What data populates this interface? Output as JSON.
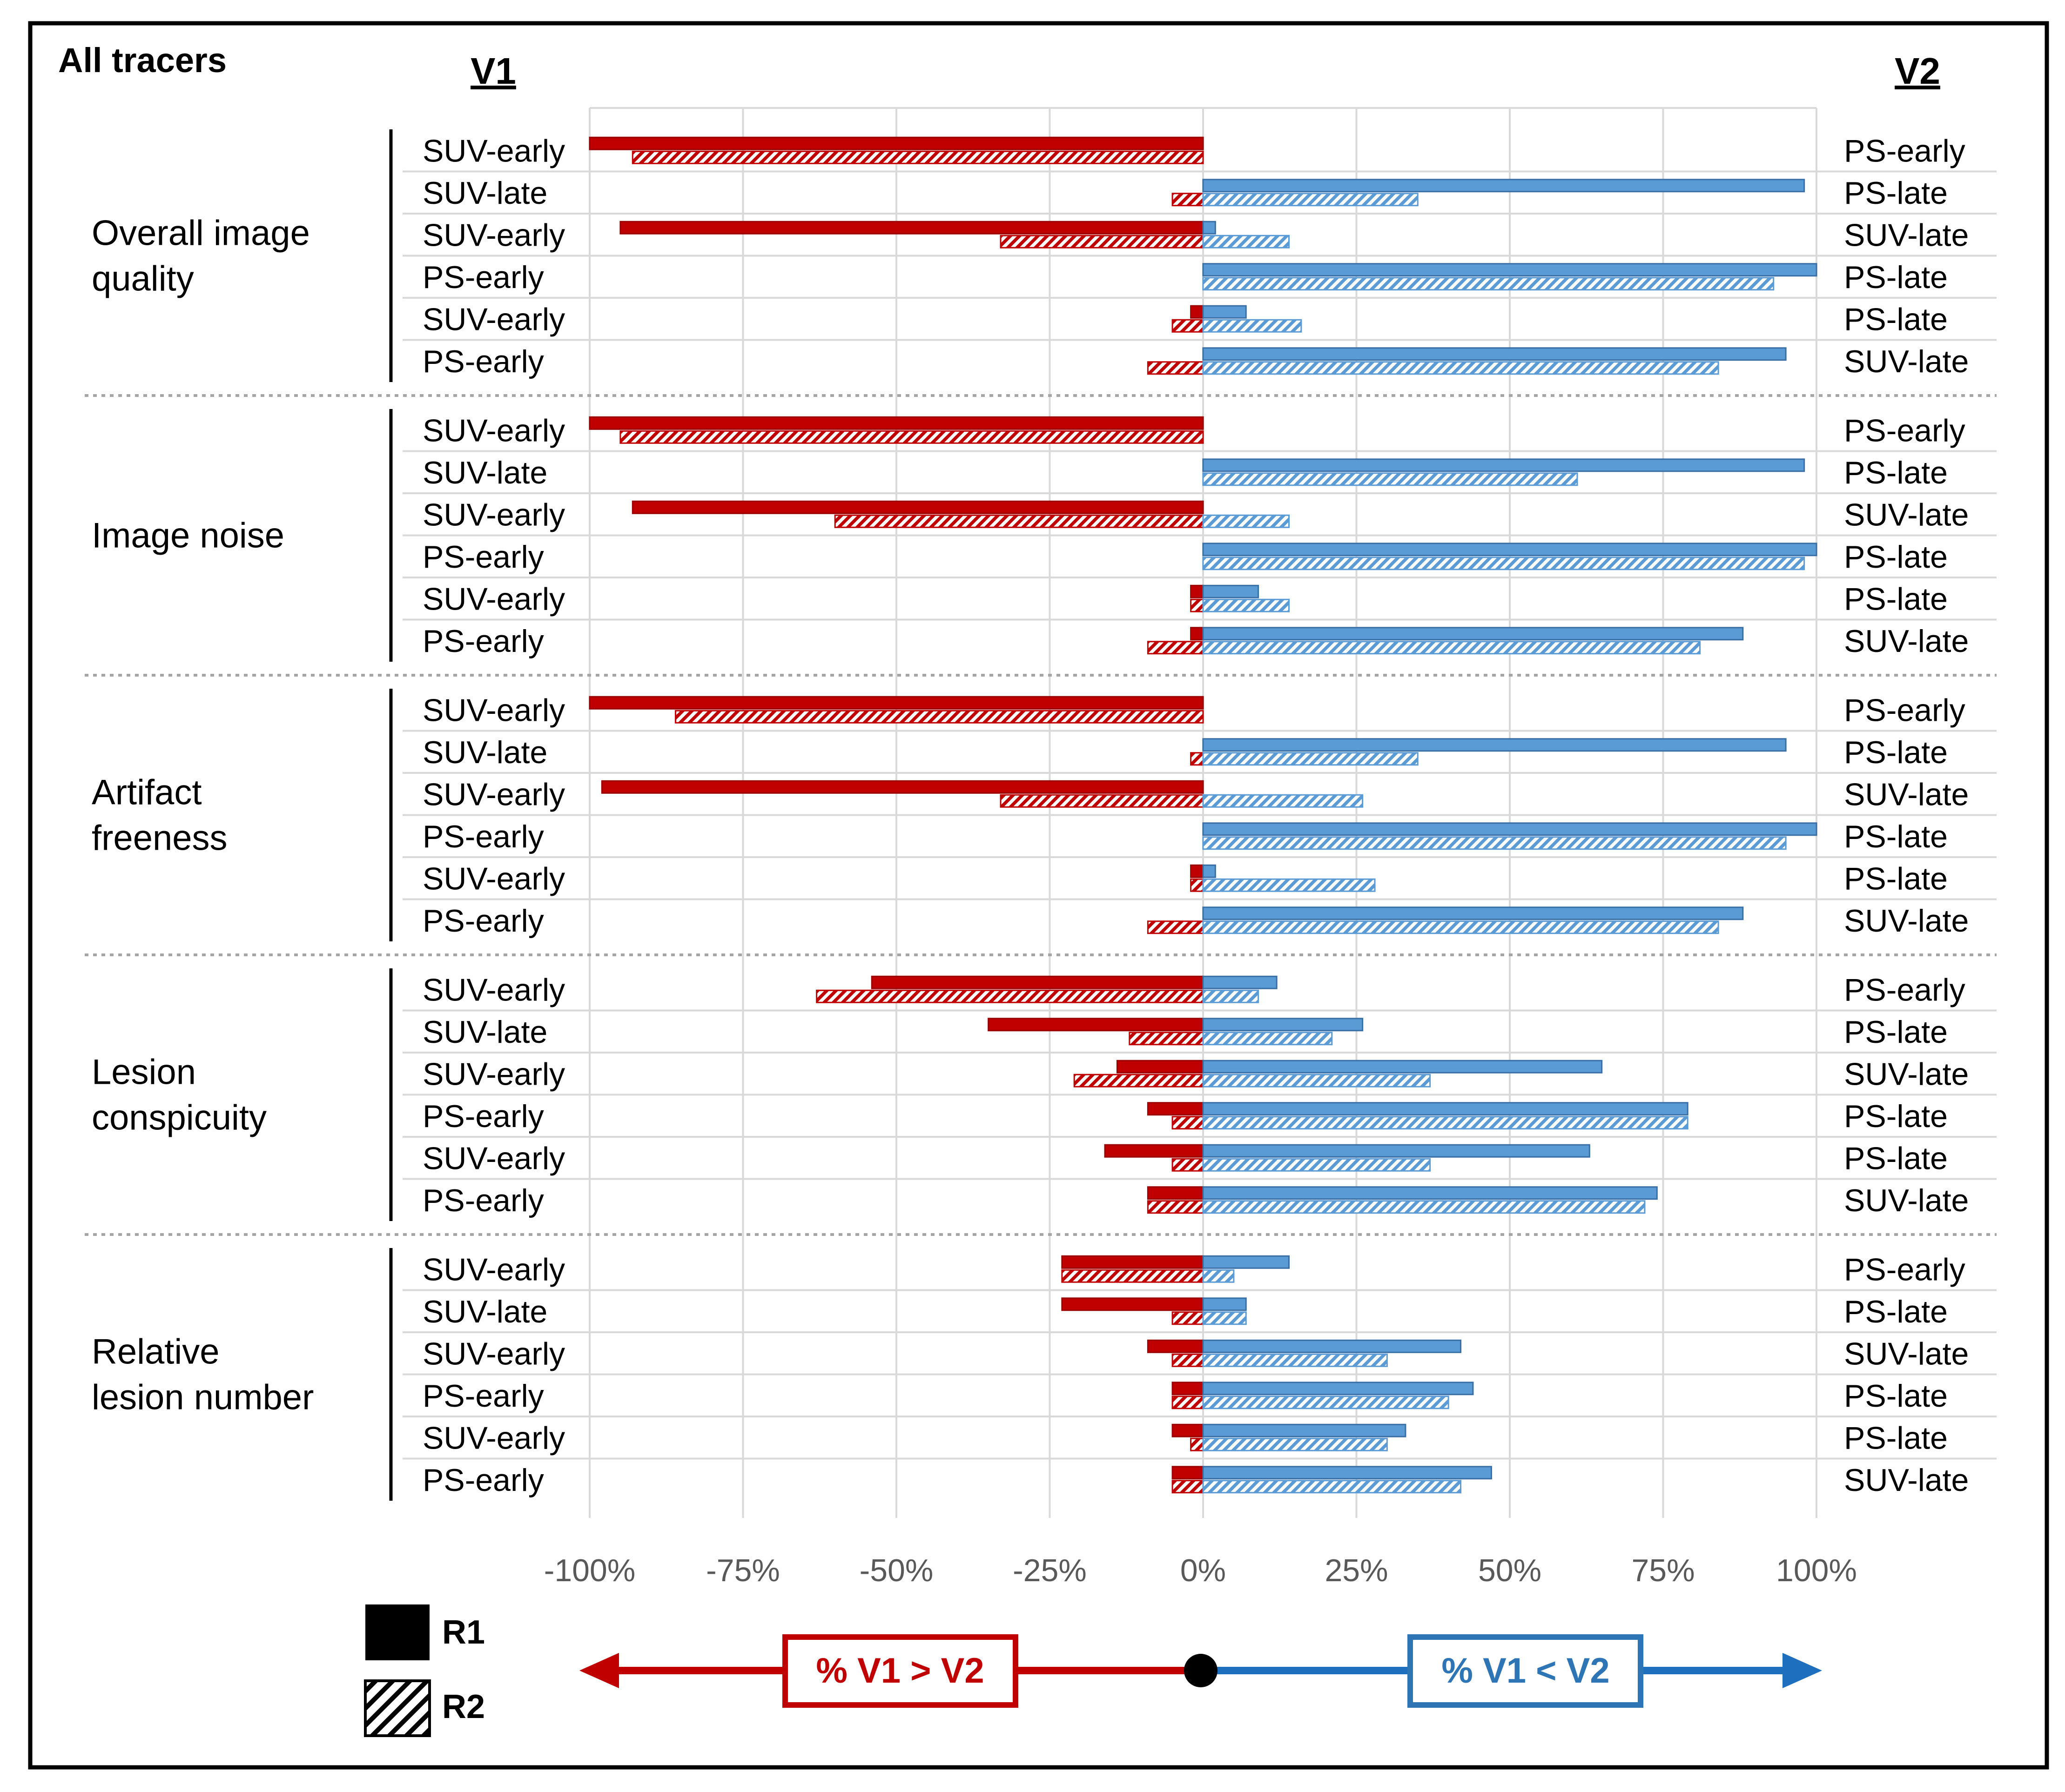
{
  "chart_data": {
    "type": "bar",
    "title": "All tracers",
    "left_header": "V1",
    "right_header": "V2",
    "x_ticks": [
      "-100%",
      "-75%",
      "-50%",
      "-25%",
      "0%",
      "25%",
      "50%",
      "75%",
      "100%"
    ],
    "xlim": [
      -100,
      100
    ],
    "series": [
      {
        "name": "R1",
        "pattern": "solid"
      },
      {
        "name": "R2",
        "pattern": "hatched"
      }
    ],
    "colors": {
      "negative": "#c00000",
      "positive": "#5b9bd5",
      "negative_hatch": "#e06060",
      "positive_hatch": "#7fb0df",
      "arrow_left": "#c00000",
      "arrow_right": "#1f6fbf"
    },
    "groups": [
      {
        "name": "Overall image quality",
        "name_lines": [
          "Overall image",
          "quality"
        ],
        "rows": [
          {
            "v1": "SUV-early",
            "v2": "PS-early",
            "r1_neg": -100,
            "r1_pos": 0,
            "r2_neg": -93,
            "r2_pos": 0
          },
          {
            "v1": "SUV-late",
            "v2": "PS-late",
            "r1_neg": 0,
            "r1_pos": 98,
            "r2_neg": -5,
            "r2_pos": 35
          },
          {
            "v1": "SUV-early",
            "v2": "SUV-late",
            "r1_neg": -95,
            "r1_pos": 2,
            "r2_neg": -33,
            "r2_pos": 14
          },
          {
            "v1": "PS-early",
            "v2": "PS-late",
            "r1_neg": 0,
            "r1_pos": 100,
            "r2_neg": 0,
            "r2_pos": 93
          },
          {
            "v1": "SUV-early",
            "v2": "PS-late",
            "r1_neg": -2,
            "r1_pos": 7,
            "r2_neg": -5,
            "r2_pos": 16
          },
          {
            "v1": "PS-early",
            "v2": "SUV-late",
            "r1_neg": 0,
            "r1_pos": 95,
            "r2_neg": -9,
            "r2_pos": 84
          }
        ]
      },
      {
        "name": "Image noise",
        "name_lines": [
          "Image noise"
        ],
        "rows": [
          {
            "v1": "SUV-early",
            "v2": "PS-early",
            "r1_neg": -100,
            "r1_pos": 0,
            "r2_neg": -95,
            "r2_pos": 0
          },
          {
            "v1": "SUV-late",
            "v2": "PS-late",
            "r1_neg": 0,
            "r1_pos": 98,
            "r2_neg": 0,
            "r2_pos": 61
          },
          {
            "v1": "SUV-early",
            "v2": "SUV-late",
            "r1_neg": -93,
            "r1_pos": 0,
            "r2_neg": -60,
            "r2_pos": 14
          },
          {
            "v1": "PS-early",
            "v2": "PS-late",
            "r1_neg": 0,
            "r1_pos": 100,
            "r2_neg": 0,
            "r2_pos": 98
          },
          {
            "v1": "SUV-early",
            "v2": "PS-late",
            "r1_neg": -2,
            "r1_pos": 9,
            "r2_neg": -2,
            "r2_pos": 14
          },
          {
            "v1": "PS-early",
            "v2": "SUV-late",
            "r1_neg": -2,
            "r1_pos": 88,
            "r2_neg": -9,
            "r2_pos": 81
          }
        ]
      },
      {
        "name": "Artifact freeness",
        "name_lines": [
          "Artifact",
          "freeness"
        ],
        "rows": [
          {
            "v1": "SUV-early",
            "v2": "PS-early",
            "r1_neg": -100,
            "r1_pos": 0,
            "r2_neg": -86,
            "r2_pos": 0
          },
          {
            "v1": "SUV-late",
            "v2": "PS-late",
            "r1_neg": 0,
            "r1_pos": 95,
            "r2_neg": -2,
            "r2_pos": 35
          },
          {
            "v1": "SUV-early",
            "v2": "SUV-late",
            "r1_neg": -98,
            "r1_pos": 0,
            "r2_neg": -33,
            "r2_pos": 26
          },
          {
            "v1": "PS-early",
            "v2": "PS-late",
            "r1_neg": 0,
            "r1_pos": 100,
            "r2_neg": 0,
            "r2_pos": 95
          },
          {
            "v1": "SUV-early",
            "v2": "PS-late",
            "r1_neg": -2,
            "r1_pos": 2,
            "r2_neg": -2,
            "r2_pos": 28
          },
          {
            "v1": "PS-early",
            "v2": "SUV-late",
            "r1_neg": 0,
            "r1_pos": 88,
            "r2_neg": -9,
            "r2_pos": 84
          }
        ]
      },
      {
        "name": "Lesion conspicuity",
        "name_lines": [
          "Lesion",
          "conspicuity"
        ],
        "rows": [
          {
            "v1": "SUV-early",
            "v2": "PS-early",
            "r1_neg": -54,
            "r1_pos": 12,
            "r2_neg": -63,
            "r2_pos": 9
          },
          {
            "v1": "SUV-late",
            "v2": "PS-late",
            "r1_neg": -35,
            "r1_pos": 26,
            "r2_neg": -12,
            "r2_pos": 21
          },
          {
            "v1": "SUV-early",
            "v2": "SUV-late",
            "r1_neg": -14,
            "r1_pos": 65,
            "r2_neg": -21,
            "r2_pos": 37
          },
          {
            "v1": "PS-early",
            "v2": "PS-late",
            "r1_neg": -9,
            "r1_pos": 79,
            "r2_neg": -5,
            "r2_pos": 79
          },
          {
            "v1": "SUV-early",
            "v2": "PS-late",
            "r1_neg": -16,
            "r1_pos": 63,
            "r2_neg": -5,
            "r2_pos": 37
          },
          {
            "v1": "PS-early",
            "v2": "SUV-late",
            "r1_neg": -9,
            "r1_pos": 74,
            "r2_neg": -9,
            "r2_pos": 72
          }
        ]
      },
      {
        "name": "Relative lesion number",
        "name_lines": [
          "Relative",
          "lesion number"
        ],
        "rows": [
          {
            "v1": "SUV-early",
            "v2": "PS-early",
            "r1_neg": -23,
            "r1_pos": 14,
            "r2_neg": -23,
            "r2_pos": 5
          },
          {
            "v1": "SUV-late",
            "v2": "PS-late",
            "r1_neg": -23,
            "r1_pos": 7,
            "r2_neg": -5,
            "r2_pos": 7
          },
          {
            "v1": "SUV-early",
            "v2": "SUV-late",
            "r1_neg": -9,
            "r1_pos": 42,
            "r2_neg": -5,
            "r2_pos": 30
          },
          {
            "v1": "PS-early",
            "v2": "PS-late",
            "r1_neg": -5,
            "r1_pos": 44,
            "r2_neg": -5,
            "r2_pos": 40
          },
          {
            "v1": "SUV-early",
            "v2": "PS-late",
            "r1_neg": -5,
            "r1_pos": 33,
            "r2_neg": -2,
            "r2_pos": 30
          },
          {
            "v1": "PS-early",
            "v2": "SUV-late",
            "r1_neg": -5,
            "r1_pos": 47,
            "r2_neg": -5,
            "r2_pos": 42
          }
        ]
      }
    ],
    "legend": {
      "r1": "R1",
      "r2": "R2"
    },
    "bottom_labels": {
      "left": "% V1 > V2",
      "right": "% V1 < V2"
    }
  }
}
